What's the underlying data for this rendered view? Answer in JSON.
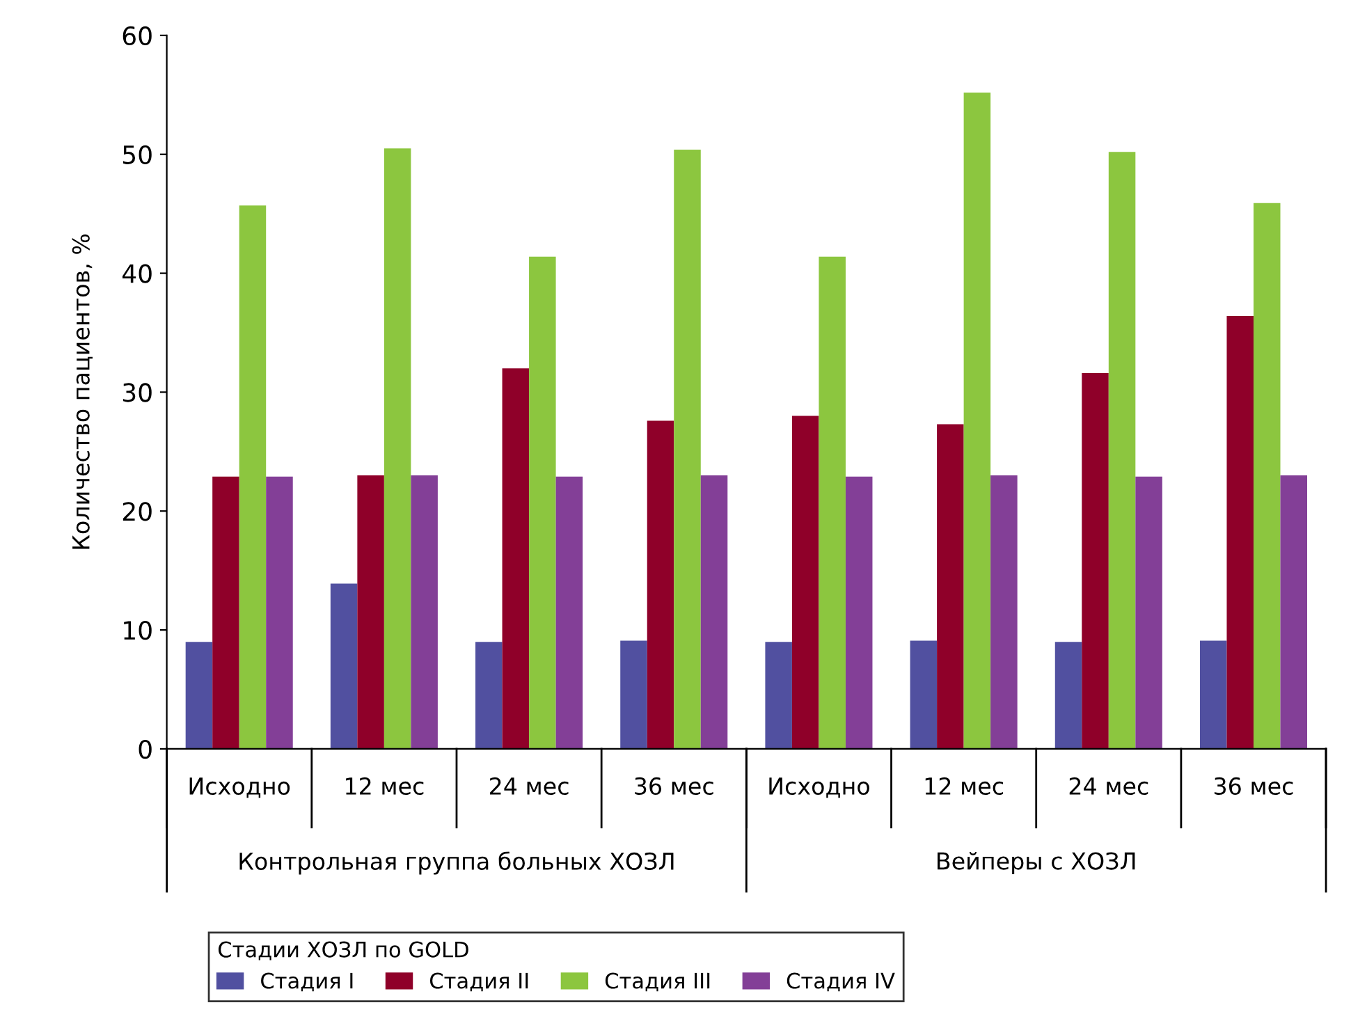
{
  "chart_data": {
    "type": "bar",
    "ylabel": "Количество пациентов, %",
    "categories": [
      "Исходно",
      "12 мес",
      "24 мес",
      "36 мес",
      "Исходно",
      "12 мес",
      "24 мес",
      "36 мес"
    ],
    "annotations": [
      "Контрольная группа больных ХОЗЛ",
      "Вейперы с ХОЗЛ"
    ],
    "series": [
      {
        "name": "Стадия I",
        "color": "#5150a0",
        "values": [
          9.0,
          13.9,
          9.0,
          9.1,
          9.0,
          9.1,
          9.0,
          9.1
        ]
      },
      {
        "name": "Стадия II",
        "color": "#8f0029",
        "values": [
          22.9,
          23.0,
          32.0,
          27.6,
          28.0,
          27.3,
          31.6,
          36.4
        ]
      },
      {
        "name": "Стадия III",
        "color": "#8cc63f",
        "values": [
          45.7,
          50.5,
          41.4,
          50.4,
          41.4,
          55.2,
          50.2,
          45.9
        ]
      },
      {
        "name": "Стадия IV",
        "color": "#833f97",
        "values": [
          22.9,
          23.0,
          22.9,
          23.0,
          22.9,
          23.0,
          22.9,
          23.0
        ]
      }
    ],
    "legend_title": "Стадии ХОЗЛ по GOLD",
    "legend": "bottom left",
    "ylim": [
      0,
      60
    ],
    "yticks": [
      0,
      10,
      20,
      30,
      40,
      50,
      60
    ],
    "grid": false
  }
}
